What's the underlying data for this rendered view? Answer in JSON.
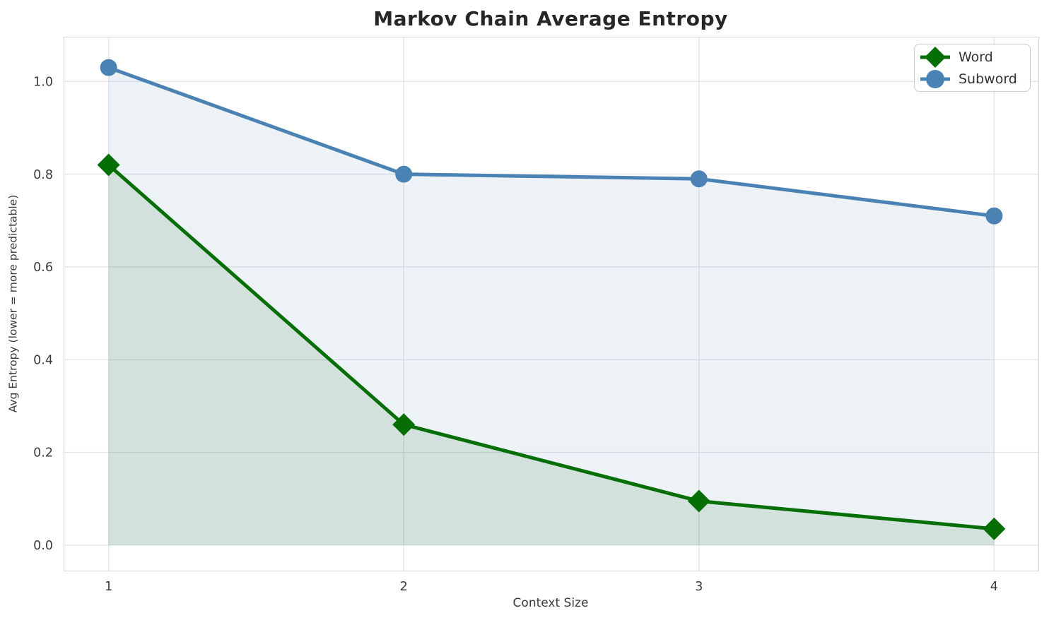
{
  "chart_data": {
    "type": "line",
    "title": "Markov Chain Average Entropy",
    "xlabel": "Context Size",
    "ylabel": "Avg Entropy (lower = more predictable)",
    "x": [
      1,
      2,
      3,
      4
    ],
    "series": [
      {
        "name": "Word",
        "color": "#056e05",
        "marker": "diamond",
        "fill_alpha": 0.12,
        "values": [
          0.82,
          0.26,
          0.095,
          0.035
        ]
      },
      {
        "name": "Subword",
        "color": "#4a82b4",
        "marker": "circle",
        "fill_alpha": 0.1,
        "values": [
          1.03,
          0.8,
          0.79,
          0.71
        ]
      }
    ],
    "xticks": [
      1,
      2,
      3,
      4
    ],
    "xtick_labels": [
      "1",
      "2",
      "3",
      "4"
    ],
    "yticks": [
      0.0,
      0.2,
      0.4,
      0.6,
      0.8,
      1.0
    ],
    "ytick_labels": [
      "0.0",
      "0.2",
      "0.4",
      "0.6",
      "0.8",
      "1.0"
    ],
    "xlim": [
      0.85,
      4.15
    ],
    "ylim": [
      -0.055,
      1.095
    ],
    "grid": true,
    "area_baseline": 0.0,
    "legend_position": "upper right",
    "colors": {
      "grid": "#e4e6e8",
      "spine": "#d3d6d9",
      "tick_text": "#3a3a3a",
      "title_text": "#262626",
      "legend_border": "#cccccc"
    }
  }
}
